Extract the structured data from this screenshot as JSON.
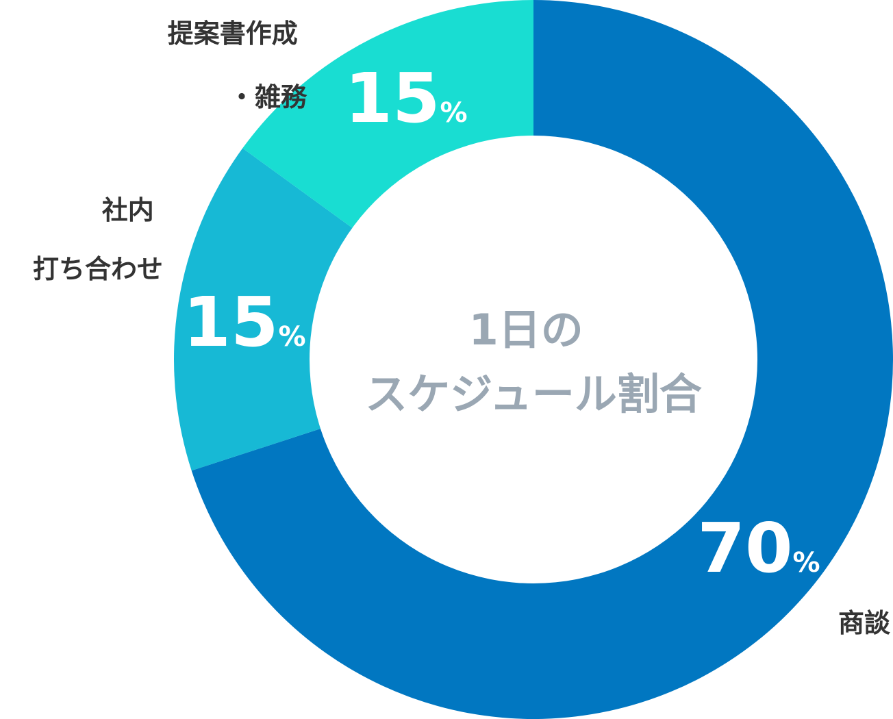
{
  "chart_data": {
    "type": "pie",
    "variant": "donut",
    "title": "1日のスケジュール割合",
    "title_lines": [
      "1日の",
      "スケジュール割合"
    ],
    "unit": "%",
    "slices": [
      {
        "label": "商談",
        "label_lines": [
          "商談"
        ],
        "value": 70,
        "color": "#0177c1"
      },
      {
        "label": "社内打ち合わせ",
        "label_lines": [
          "社内",
          "打ち合わせ"
        ],
        "value": 15,
        "color": "#17b9d5"
      },
      {
        "label": "提案書作成・雑務",
        "label_lines": [
          "提案書作成",
          "・雑務"
        ],
        "value": 15,
        "color": "#19ddd2"
      }
    ]
  }
}
